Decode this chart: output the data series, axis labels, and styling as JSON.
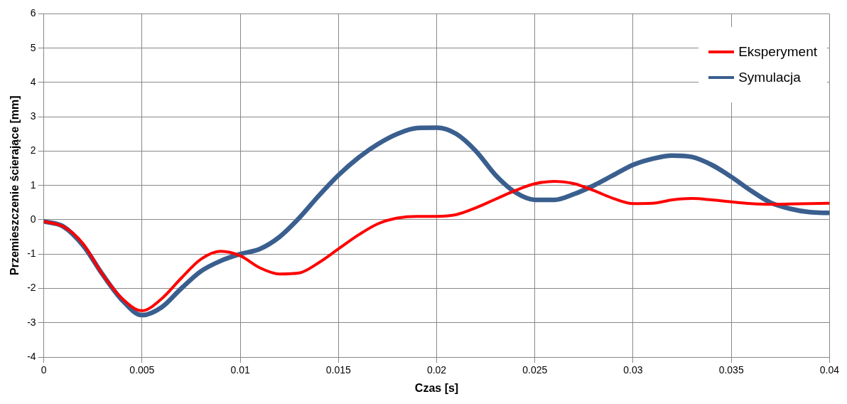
{
  "chart_data": {
    "type": "line",
    "xlabel": "Czas [s]",
    "ylabel": "Przemieszczenie ścierające [mm]",
    "x": [
      0,
      0.001,
      0.002,
      0.003,
      0.004,
      0.005,
      0.006,
      0.007,
      0.008,
      0.009,
      0.01,
      0.011,
      0.012,
      0.013,
      0.014,
      0.015,
      0.016,
      0.017,
      0.018,
      0.019,
      0.02,
      0.021,
      0.022,
      0.023,
      0.024,
      0.025,
      0.026,
      0.027,
      0.028,
      0.029,
      0.03,
      0.031,
      0.032,
      0.033,
      0.034,
      0.035,
      0.036,
      0.037,
      0.038,
      0.039,
      0.04
    ],
    "series": [
      {
        "name": "Eksperyment",
        "color": "#ff0000",
        "values": [
          -0.05,
          -0.2,
          -0.7,
          -1.6,
          -2.3,
          -2.65,
          -2.3,
          -1.7,
          -1.15,
          -0.92,
          -1.05,
          -1.4,
          -1.58,
          -1.55,
          -1.25,
          -0.85,
          -0.45,
          -0.12,
          0.05,
          0.1,
          0.1,
          0.15,
          0.35,
          0.6,
          0.85,
          1.05,
          1.12,
          1.05,
          0.85,
          0.62,
          0.47,
          0.48,
          0.58,
          0.62,
          0.58,
          0.52,
          0.47,
          0.45,
          0.46,
          0.47,
          0.48
        ]
      },
      {
        "name": "Symulacja",
        "color": "#3a5f8f",
        "values": [
          -0.05,
          -0.2,
          -0.75,
          -1.6,
          -2.35,
          -2.78,
          -2.55,
          -2.0,
          -1.5,
          -1.2,
          -1.0,
          -0.85,
          -0.5,
          0.05,
          0.7,
          1.3,
          1.8,
          2.2,
          2.5,
          2.67,
          2.68,
          2.5,
          2.0,
          1.3,
          0.8,
          0.58,
          0.58,
          0.75,
          1.0,
          1.3,
          1.6,
          1.78,
          1.87,
          1.83,
          1.6,
          1.25,
          0.85,
          0.5,
          0.32,
          0.22,
          0.2
        ]
      }
    ],
    "xlim": [
      0,
      0.04
    ],
    "xticks": [
      0,
      0.005,
      0.01,
      0.015,
      0.02,
      0.025,
      0.03,
      0.035,
      0.04
    ],
    "ylim": [
      -4,
      6
    ],
    "yticks": [
      -4,
      -3,
      -2,
      -1,
      0,
      1,
      2,
      3,
      4,
      5,
      6
    ],
    "grid": true,
    "legend": "top right",
    "marker": "none",
    "line_style": "solid"
  }
}
